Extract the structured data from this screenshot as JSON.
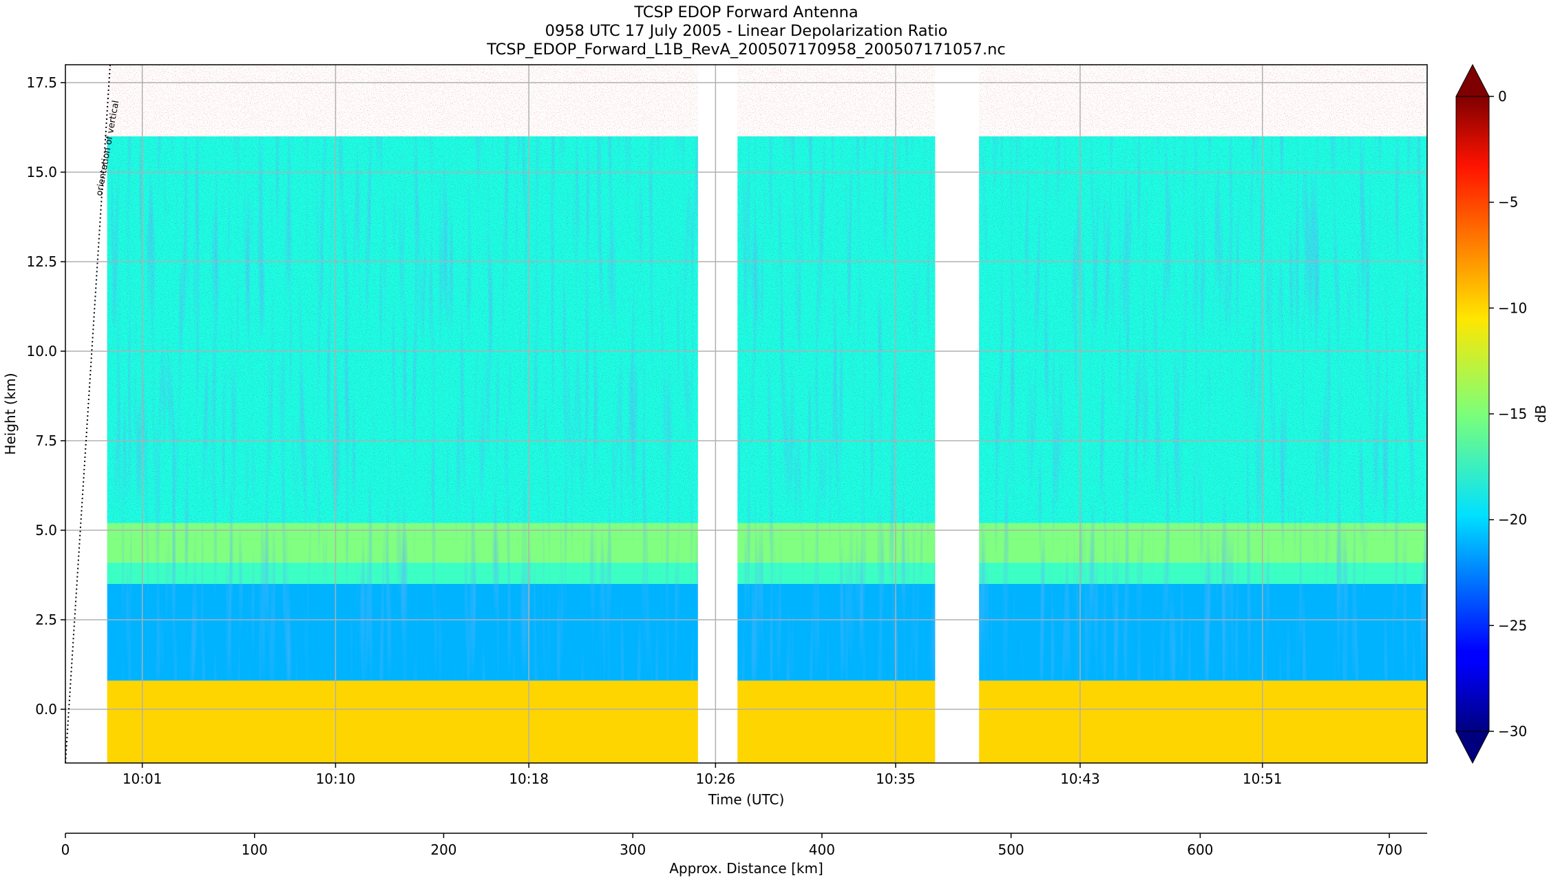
{
  "chart_data": {
    "type": "heatmap",
    "title_lines": [
      "TCSP EDOP Forward Antenna",
      "0958 UTC 17 July 2005 - Linear Depolarization Ratio",
      "TCSP_EDOP_Forward_L1B_RevA_200507170958_200507171057.nc"
    ],
    "xlabel": "Time (UTC)",
    "ylabel": "Height (km)",
    "x2label": "Approx. Distance [km]",
    "colorbar_label": "dB",
    "annotation": "orientation of vertical",
    "ylim": [
      -1.5,
      18
    ],
    "y_ticks": [
      0.0,
      2.5,
      5.0,
      7.5,
      10.0,
      12.5,
      15.0,
      17.5
    ],
    "y_tick_labels": [
      "0.0",
      "2.5",
      "5.0",
      "7.5",
      "10.0",
      "12.5",
      "15.0",
      "17.5"
    ],
    "time_range_min": [
      0,
      62
    ],
    "time_ticks_min": [
      3.5,
      12.3,
      21.1,
      29.6,
      37.8,
      46.2,
      54.5
    ],
    "time_tick_labels": [
      "10:01",
      "10:10",
      "10:18",
      "10:26",
      "10:35",
      "10:43",
      "10:51"
    ],
    "distance_range_km": [
      0,
      720
    ],
    "distance_ticks_km": [
      0,
      100,
      200,
      300,
      400,
      500,
      600,
      700
    ],
    "distance_tick_labels": [
      "0",
      "100",
      "200",
      "300",
      "400",
      "500",
      "600",
      "700"
    ],
    "colorbar_range": [
      -30,
      0
    ],
    "colorbar_ticks": [
      0,
      -5,
      -10,
      -15,
      -20,
      -25,
      -30
    ],
    "colorbar_tick_labels": [
      "0",
      "−5",
      "−10",
      "−15",
      "−20",
      "−25",
      "−30"
    ],
    "colorbar_extend": "both",
    "colormap": "jet",
    "data_gaps_min": [
      [
        0,
        1.9
      ],
      [
        28.8,
        30.6
      ],
      [
        39.6,
        41.6
      ]
    ],
    "layers_db": [
      {
        "height_km": [
          -1.5,
          0.8
        ],
        "value_db": -10
      },
      {
        "height_km": [
          0.8,
          3.5
        ],
        "value_db": -21
      },
      {
        "height_km": [
          3.5,
          4.1
        ],
        "value_db": -17
      },
      {
        "height_km": [
          4.1,
          5.2
        ],
        "value_db": -15
      },
      {
        "height_km": [
          5.2,
          16
        ],
        "value_db": -18
      }
    ],
    "grid": true
  }
}
